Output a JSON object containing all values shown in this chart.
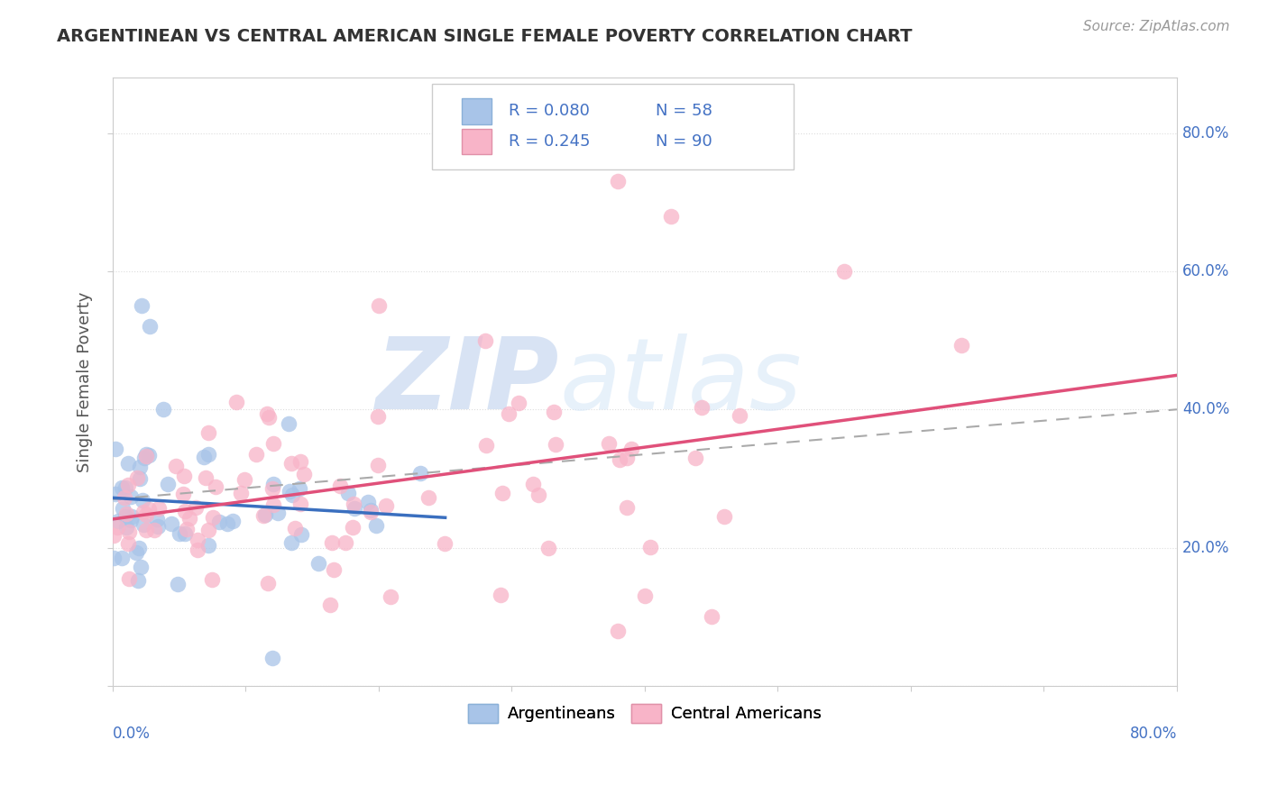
{
  "title": "ARGENTINEAN VS CENTRAL AMERICAN SINGLE FEMALE POVERTY CORRELATION CHART",
  "source": "Source: ZipAtlas.com",
  "ylabel": "Single Female Poverty",
  "ylim": [
    0.0,
    0.88
  ],
  "xlim": [
    0.0,
    0.8
  ],
  "ytick_positions": [
    0.0,
    0.2,
    0.4,
    0.6,
    0.8
  ],
  "ytick_labels": [
    "",
    "20.0%",
    "40.0%",
    "60.0%",
    "80.0%"
  ],
  "color_arg": "#a8c4e8",
  "color_cam": "#f8b4c8",
  "color_arg_line": "#3a6fbf",
  "color_cam_line": "#e0507a",
  "color_dashed": "#aaaaaa",
  "watermark_zip": "ZIP",
  "watermark_atlas": "atlas",
  "legend_r1": "R = 0.080",
  "legend_n1": "N = 58",
  "legend_r2": "R = 0.245",
  "legend_n2": "N = 90",
  "legend_color_text": "#4472c4"
}
